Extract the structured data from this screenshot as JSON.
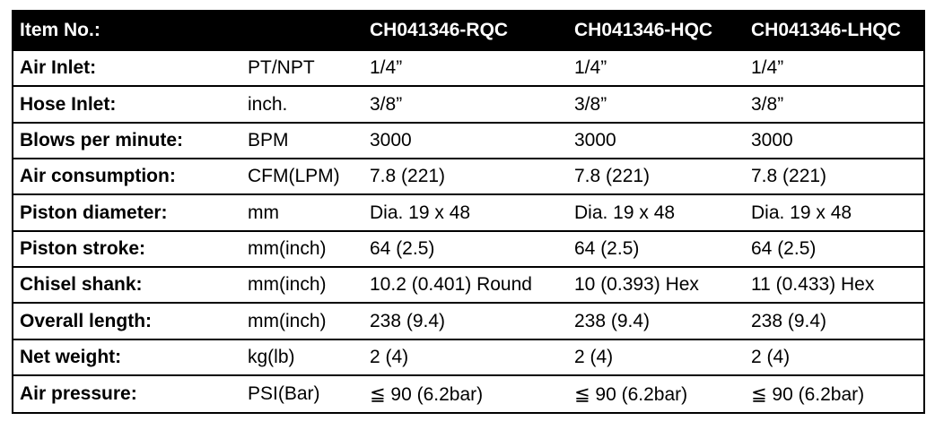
{
  "header": {
    "label": "Item No.:",
    "unit": "",
    "models": [
      "CH041346-RQC",
      "CH041346-HQC",
      "CH041346-LHQC"
    ]
  },
  "rows": [
    {
      "label": "Air Inlet:",
      "unit": "PT/NPT",
      "values": [
        "1/4”",
        "1/4”",
        "1/4”"
      ]
    },
    {
      "label": "Hose Inlet:",
      "unit": "inch.",
      "values": [
        "3/8”",
        "3/8”",
        "3/8”"
      ]
    },
    {
      "label": "Blows per minute:",
      "unit": "BPM",
      "values": [
        "3000",
        "3000",
        "3000"
      ]
    },
    {
      "label": "Air consumption:",
      "unit": "CFM(LPM)",
      "values": [
        "7.8 (221)",
        "7.8 (221)",
        "7.8 (221)"
      ]
    },
    {
      "label": "Piston diameter:",
      "unit": "mm",
      "values": [
        "Dia. 19 x 48",
        "Dia. 19 x 48",
        "Dia. 19 x 48"
      ]
    },
    {
      "label": "Piston stroke:",
      "unit": "mm(inch)",
      "values": [
        "64 (2.5)",
        "64 (2.5)",
        "64 (2.5)"
      ]
    },
    {
      "label": "Chisel shank:",
      "unit": "mm(inch)",
      "values": [
        "10.2 (0.401) Round",
        "10 (0.393) Hex",
        "11 (0.433) Hex"
      ]
    },
    {
      "label": "Overall length:",
      "unit": "mm(inch)",
      "values": [
        "238 (9.4)",
        "238 (9.4)",
        "238 (9.4)"
      ]
    },
    {
      "label": "Net weight:",
      "unit": "kg(lb)",
      "values": [
        "2 (4)",
        "2 (4)",
        "2 (4)"
      ]
    },
    {
      "label": "Air pressure:",
      "unit": "PSI(Bar)",
      "values": [
        "≦ 90 (6.2bar)",
        "≦ 90 (6.2bar)",
        "≦ 90 (6.2bar)"
      ]
    }
  ]
}
